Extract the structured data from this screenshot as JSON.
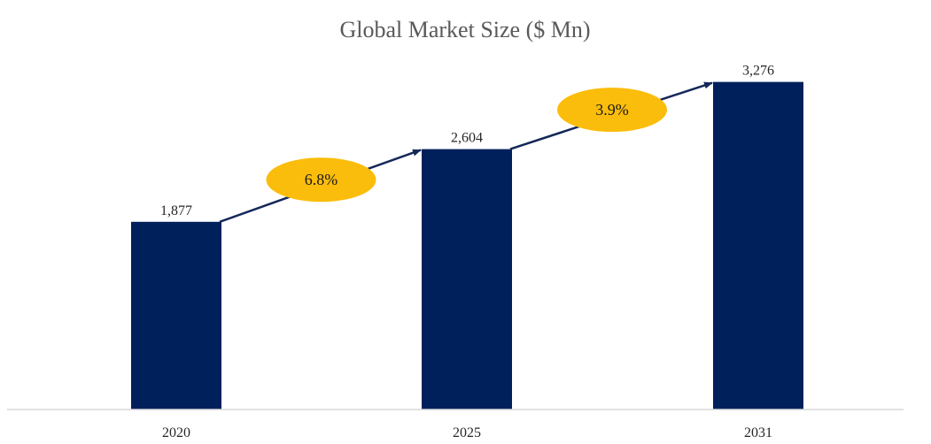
{
  "chart_data": {
    "type": "bar",
    "title": "Global Market Size ($ Mn)",
    "xlabel": "",
    "ylabel": "",
    "categories": [
      "2020",
      "2025",
      "2031"
    ],
    "values": [
      1877,
      2604,
      3276
    ],
    "value_labels": [
      "1,877",
      "2,604",
      "3,276"
    ],
    "ylim": [
      0,
      3600
    ],
    "grid": false,
    "legend": "none",
    "annotations": [
      {
        "from": "2020",
        "to": "2025",
        "text": "6.8%"
      },
      {
        "from": "2025",
        "to": "2031",
        "text": "3.9%"
      }
    ],
    "colors": {
      "bar": "#00205b",
      "arrow": "#14285a",
      "bubble": "#fbbd0b",
      "axis": "#d9d9d9"
    }
  }
}
